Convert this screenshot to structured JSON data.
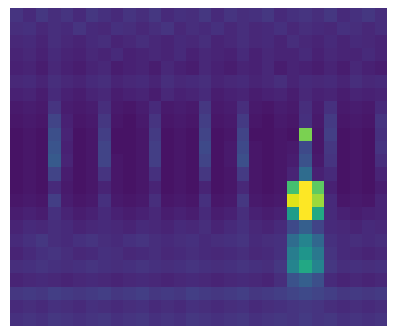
{
  "chart_data": {
    "type": "heatmap",
    "color": "viridis",
    "zlim": [
      0,
      1
    ],
    "tick_labels": false,
    "cells": [
      [
        0.15,
        0.12,
        0.16,
        0.13,
        0.15,
        0.12,
        0.16,
        0.14,
        0.12,
        0.15,
        0.13,
        0.16,
        0.12,
        0.14,
        0.13,
        0.16,
        0.12,
        0.15,
        0.13,
        0.14,
        0.16,
        0.12,
        0.14,
        0.15,
        0.13,
        0.16,
        0.12,
        0.14,
        0.16,
        0.13
      ],
      [
        0.13,
        0.14,
        0.11,
        0.13,
        0.12,
        0.15,
        0.12,
        0.11,
        0.14,
        0.13,
        0.11,
        0.13,
        0.15,
        0.11,
        0.13,
        0.12,
        0.14,
        0.11,
        0.13,
        0.11,
        0.12,
        0.14,
        0.11,
        0.13,
        0.12,
        0.11,
        0.14,
        0.13,
        0.11,
        0.13
      ],
      [
        0.11,
        0.12,
        0.1,
        0.13,
        0.11,
        0.1,
        0.12,
        0.13,
        0.1,
        0.11,
        0.13,
        0.11,
        0.1,
        0.12,
        0.11,
        0.13,
        0.1,
        0.11,
        0.13,
        0.11,
        0.12,
        0.1,
        0.13,
        0.11,
        0.1,
        0.12,
        0.1,
        0.12,
        0.11,
        0.1
      ],
      [
        0.1,
        0.11,
        0.09,
        0.12,
        0.1,
        0.09,
        0.11,
        0.1,
        0.12,
        0.09,
        0.1,
        0.11,
        0.1,
        0.12,
        0.09,
        0.11,
        0.1,
        0.09,
        0.12,
        0.09,
        0.11,
        0.1,
        0.1,
        0.12,
        0.09,
        0.11,
        0.1,
        0.1,
        0.12,
        0.1
      ],
      [
        0.09,
        0.1,
        0.08,
        0.11,
        0.09,
        0.08,
        0.1,
        0.11,
        0.08,
        0.09,
        0.1,
        0.08,
        0.11,
        0.09,
        0.08,
        0.11,
        0.09,
        0.08,
        0.1,
        0.09,
        0.11,
        0.08,
        0.1,
        0.09,
        0.08,
        0.1,
        0.08,
        0.11,
        0.09,
        0.08
      ],
      [
        0.11,
        0.12,
        0.1,
        0.13,
        0.11,
        0.1,
        0.12,
        0.13,
        0.1,
        0.11,
        0.12,
        0.1,
        0.13,
        0.11,
        0.12,
        0.13,
        0.1,
        0.11,
        0.12,
        0.1,
        0.11,
        0.13,
        0.1,
        0.12,
        0.11,
        0.12,
        0.1,
        0.13,
        0.11,
        0.12
      ],
      [
        0.09,
        0.1,
        0.08,
        0.12,
        0.09,
        0.08,
        0.1,
        0.11,
        0.08,
        0.09,
        0.1,
        0.08,
        0.11,
        0.09,
        0.1,
        0.12,
        0.08,
        0.09,
        0.1,
        0.08,
        0.09,
        0.1,
        0.08,
        0.11,
        0.09,
        0.1,
        0.08,
        0.1,
        0.09,
        0.1
      ],
      [
        0.07,
        0.08,
        0.07,
        0.15,
        0.08,
        0.07,
        0.08,
        0.13,
        0.07,
        0.06,
        0.08,
        0.12,
        0.07,
        0.08,
        0.07,
        0.16,
        0.07,
        0.08,
        0.13,
        0.07,
        0.06,
        0.08,
        0.07,
        0.13,
        0.08,
        0.14,
        0.07,
        0.08,
        0.07,
        0.12
      ],
      [
        0.06,
        0.07,
        0.06,
        0.2,
        0.09,
        0.06,
        0.07,
        0.16,
        0.06,
        0.05,
        0.07,
        0.15,
        0.06,
        0.07,
        0.06,
        0.18,
        0.06,
        0.07,
        0.17,
        0.06,
        0.05,
        0.07,
        0.06,
        0.14,
        0.07,
        0.17,
        0.06,
        0.07,
        0.06,
        0.15
      ],
      [
        0.05,
        0.06,
        0.05,
        0.24,
        0.1,
        0.05,
        0.06,
        0.18,
        0.05,
        0.05,
        0.06,
        0.17,
        0.05,
        0.06,
        0.05,
        0.2,
        0.05,
        0.06,
        0.2,
        0.05,
        0.05,
        0.06,
        0.05,
        0.8,
        0.06,
        0.18,
        0.05,
        0.06,
        0.05,
        0.14
      ],
      [
        0.05,
        0.06,
        0.05,
        0.26,
        0.09,
        0.05,
        0.06,
        0.2,
        0.05,
        0.05,
        0.06,
        0.18,
        0.05,
        0.06,
        0.05,
        0.22,
        0.05,
        0.07,
        0.22,
        0.06,
        0.05,
        0.06,
        0.07,
        0.22,
        0.06,
        0.16,
        0.05,
        0.06,
        0.05,
        0.15
      ],
      [
        0.05,
        0.06,
        0.05,
        0.28,
        0.1,
        0.05,
        0.06,
        0.2,
        0.06,
        0.05,
        0.06,
        0.18,
        0.05,
        0.06,
        0.05,
        0.2,
        0.05,
        0.07,
        0.24,
        0.06,
        0.05,
        0.06,
        0.08,
        0.25,
        0.07,
        0.15,
        0.05,
        0.06,
        0.05,
        0.13
      ],
      [
        0.05,
        0.06,
        0.05,
        0.2,
        0.08,
        0.05,
        0.06,
        0.15,
        0.06,
        0.05,
        0.06,
        0.14,
        0.05,
        0.06,
        0.05,
        0.16,
        0.05,
        0.06,
        0.17,
        0.06,
        0.05,
        0.06,
        0.1,
        0.35,
        0.09,
        0.12,
        0.05,
        0.06,
        0.05,
        0.1
      ],
      [
        0.05,
        0.06,
        0.05,
        0.12,
        0.07,
        0.05,
        0.06,
        0.1,
        0.06,
        0.05,
        0.06,
        0.1,
        0.05,
        0.06,
        0.05,
        0.1,
        0.05,
        0.06,
        0.11,
        0.06,
        0.05,
        0.06,
        0.7,
        1.0,
        0.75,
        0.09,
        0.05,
        0.06,
        0.05,
        0.08
      ],
      [
        0.06,
        0.07,
        0.06,
        0.18,
        0.08,
        0.06,
        0.07,
        0.14,
        0.07,
        0.06,
        0.07,
        0.13,
        0.06,
        0.07,
        0.06,
        0.14,
        0.06,
        0.07,
        0.16,
        0.07,
        0.06,
        0.07,
        0.95,
        1.0,
        0.85,
        0.12,
        0.06,
        0.07,
        0.06,
        0.1
      ],
      [
        0.08,
        0.09,
        0.08,
        0.14,
        0.1,
        0.08,
        0.09,
        0.12,
        0.09,
        0.08,
        0.09,
        0.11,
        0.08,
        0.09,
        0.08,
        0.12,
        0.08,
        0.09,
        0.13,
        0.09,
        0.08,
        0.09,
        0.55,
        1.0,
        0.6,
        0.12,
        0.09,
        0.08,
        0.09,
        0.1
      ],
      [
        0.1,
        0.12,
        0.11,
        0.13,
        0.12,
        0.1,
        0.11,
        0.12,
        0.11,
        0.1,
        0.12,
        0.11,
        0.1,
        0.12,
        0.11,
        0.13,
        0.1,
        0.12,
        0.14,
        0.11,
        0.1,
        0.12,
        0.22,
        0.3,
        0.2,
        0.12,
        0.11,
        0.1,
        0.12,
        0.11
      ],
      [
        0.12,
        0.14,
        0.16,
        0.13,
        0.12,
        0.14,
        0.15,
        0.13,
        0.12,
        0.14,
        0.15,
        0.13,
        0.12,
        0.13,
        0.14,
        0.12,
        0.13,
        0.14,
        0.15,
        0.12,
        0.13,
        0.14,
        0.35,
        0.45,
        0.33,
        0.14,
        0.12,
        0.13,
        0.12,
        0.13
      ],
      [
        0.1,
        0.12,
        0.14,
        0.15,
        0.13,
        0.11,
        0.12,
        0.14,
        0.13,
        0.11,
        0.12,
        0.13,
        0.11,
        0.12,
        0.13,
        0.12,
        0.11,
        0.12,
        0.13,
        0.11,
        0.12,
        0.14,
        0.42,
        0.52,
        0.4,
        0.15,
        0.12,
        0.11,
        0.1,
        0.11
      ],
      [
        0.13,
        0.14,
        0.15,
        0.14,
        0.13,
        0.14,
        0.15,
        0.14,
        0.13,
        0.14,
        0.15,
        0.14,
        0.13,
        0.14,
        0.15,
        0.14,
        0.13,
        0.14,
        0.15,
        0.14,
        0.13,
        0.16,
        0.45,
        0.6,
        0.45,
        0.16,
        0.13,
        0.14,
        0.13,
        0.14
      ],
      [
        0.1,
        0.11,
        0.12,
        0.11,
        0.1,
        0.11,
        0.12,
        0.11,
        0.1,
        0.11,
        0.12,
        0.11,
        0.1,
        0.11,
        0.12,
        0.11,
        0.1,
        0.11,
        0.12,
        0.11,
        0.1,
        0.13,
        0.25,
        0.3,
        0.24,
        0.12,
        0.1,
        0.11,
        0.1,
        0.11
      ],
      [
        0.16,
        0.17,
        0.16,
        0.18,
        0.17,
        0.16,
        0.17,
        0.18,
        0.16,
        0.17,
        0.18,
        0.16,
        0.17,
        0.16,
        0.18,
        0.17,
        0.16,
        0.17,
        0.18,
        0.16,
        0.17,
        0.18,
        0.2,
        0.22,
        0.2,
        0.18,
        0.16,
        0.17,
        0.16,
        0.17
      ],
      [
        0.12,
        0.13,
        0.12,
        0.14,
        0.13,
        0.12,
        0.14,
        0.13,
        0.12,
        0.13,
        0.14,
        0.12,
        0.13,
        0.12,
        0.14,
        0.13,
        0.12,
        0.13,
        0.14,
        0.12,
        0.13,
        0.14,
        0.15,
        0.16,
        0.15,
        0.13,
        0.12,
        0.13,
        0.12,
        0.13
      ],
      [
        0.14,
        0.15,
        0.14,
        0.16,
        0.15,
        0.14,
        0.15,
        0.16,
        0.14,
        0.15,
        0.16,
        0.14,
        0.15,
        0.14,
        0.16,
        0.15,
        0.14,
        0.15,
        0.16,
        0.14,
        0.15,
        0.16,
        0.15,
        0.17,
        0.15,
        0.16,
        0.14,
        0.15,
        0.14,
        0.15
      ]
    ]
  }
}
